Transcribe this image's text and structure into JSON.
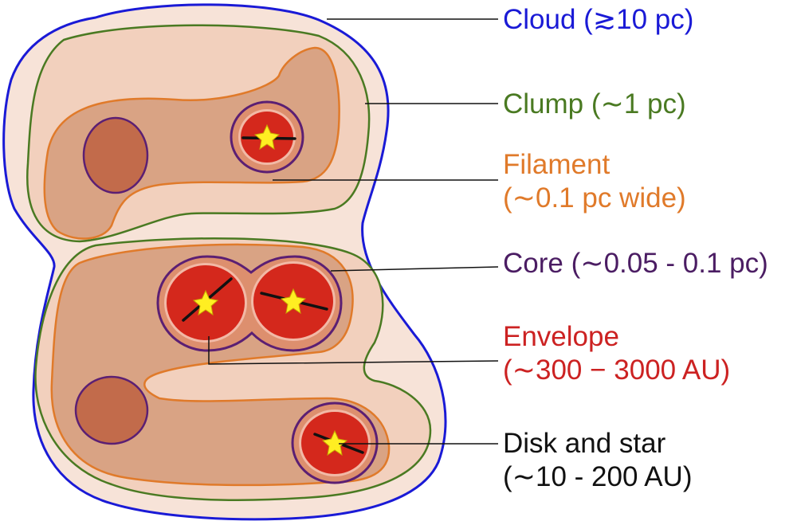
{
  "labels": {
    "cloud": {
      "text": "Cloud (≳10 pc)",
      "color": "#1a1ad6"
    },
    "clump": {
      "text": "Clump (∼1 pc)",
      "color": "#4a7a22"
    },
    "filament": {
      "line1": "Filament",
      "line2": "(∼0.1 pc wide)",
      "color": "#e07a2a"
    },
    "core": {
      "text": "Core (∼0.05 - 0.1 pc)",
      "color": "#4b1d63"
    },
    "envelope": {
      "line1": "Envelope",
      "line2": "(∼300 − 3000 AU)",
      "color": "#cc2222"
    },
    "disk": {
      "line1": "Disk and star",
      "line2": "(∼10 - 200 AU)",
      "color": "#111111"
    }
  },
  "colors": {
    "cloud_fill": "#f7e3d8",
    "cloud_stroke": "#1a1ad6",
    "clump_fill": "#f2d0bd",
    "clump_stroke": "#4a7a22",
    "filament_fill": "#d9a384",
    "filament_stroke": "#e07a2a",
    "starless_core_fill": "#c26b4b",
    "core_stroke": "#5b1f73",
    "core_fill": "#dd8f6e",
    "envelope_fill": "#d4281c",
    "envelope_ring": "#f2b9a6",
    "star_fill": "#ffee22",
    "star_stroke": "#c8a800",
    "disk_color": "#111111"
  },
  "icons": {
    "star": "yellow-star-icon"
  }
}
